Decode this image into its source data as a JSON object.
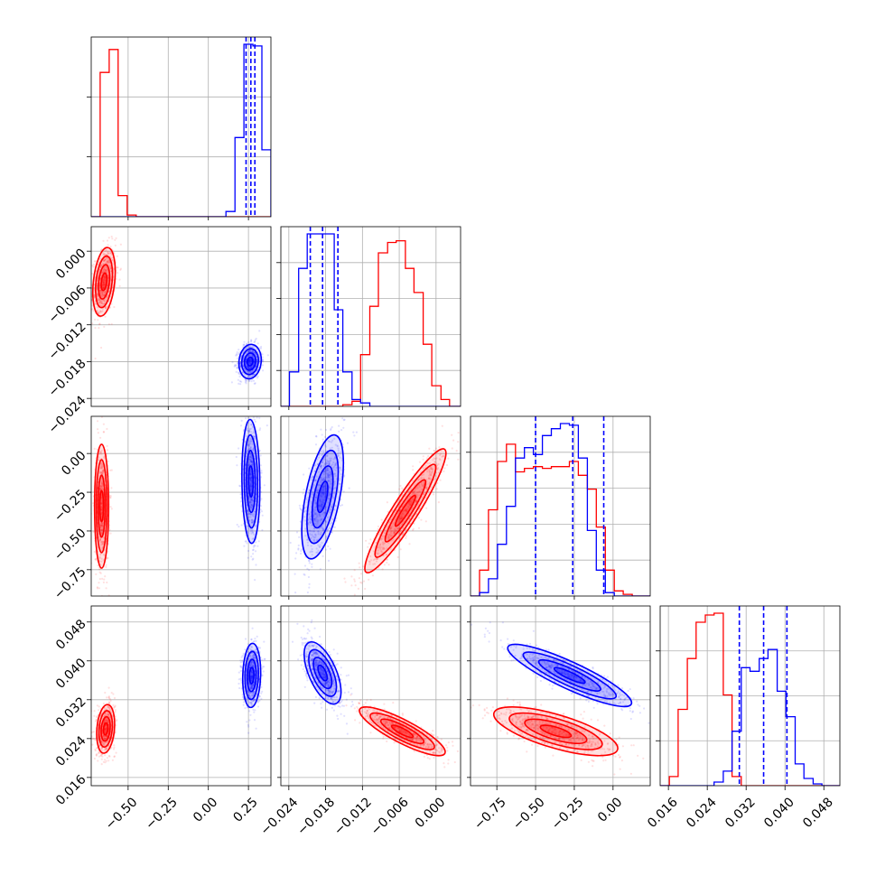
{
  "chart_data": {
    "type": "corner",
    "title": "",
    "grid": true,
    "legend": "none",
    "series": [
      {
        "color": "#ff0000"
      },
      {
        "color": "#0000ff"
      }
    ],
    "parameters": [
      {
        "index": 0,
        "xlabel": "",
        "range": [
          -0.73,
          0.39
        ],
        "ticks": [
          -0.5,
          -0.25,
          0.0,
          0.25
        ],
        "tick_labels": [
          "−0.50",
          "−0.25",
          "0.00",
          "0.25"
        ]
      },
      {
        "index": 1,
        "xlabel": "",
        "range": [
          -0.0253,
          0.004
        ],
        "ticks": [
          -0.024,
          -0.018,
          -0.012,
          -0.006,
          0.0
        ],
        "tick_labels": [
          "−0.024",
          "−0.018",
          "−0.012",
          "−0.006",
          "0.000"
        ]
      },
      {
        "index": 2,
        "xlabel": "",
        "range": [
          -0.92,
          0.24
        ],
        "ticks": [
          -0.75,
          -0.5,
          -0.25,
          0.0
        ],
        "tick_labels": [
          "−0.75",
          "−0.50",
          "−0.25",
          "0.00"
        ]
      },
      {
        "index": 3,
        "xlabel": "",
        "range": [
          0.0143,
          0.0513
        ],
        "ticks": [
          0.016,
          0.024,
          0.032,
          0.04,
          0.048
        ],
        "tick_labels": [
          "0.016",
          "0.024",
          "0.032",
          "0.040",
          "0.048"
        ]
      }
    ],
    "diagonal_tick_counts": [
      2,
      4,
      4,
      3
    ],
    "quantiles": [
      [
        0.235,
        0.265,
        0.29
      ],
      [
        -0.0205,
        -0.0185,
        -0.016
      ],
      [
        -0.5,
        -0.26,
        -0.06
      ],
      [
        0.0306,
        0.0356,
        0.0404
      ]
    ],
    "histograms": [
      {
        "bins": [
          -0.73,
          -0.674,
          -0.618,
          -0.562,
          -0.506,
          -0.45,
          -0.394,
          -0.338,
          -0.282,
          -0.226,
          -0.17,
          -0.114,
          -0.058,
          -0.002,
          0.054,
          0.11,
          0.166,
          0.222,
          0.278,
          0.334,
          0.39
        ],
        "red": [
          0.0,
          0.82,
          0.95,
          0.12,
          0.01,
          0.0,
          0.0,
          0.0,
          0.0,
          0.0,
          0.0,
          0.0,
          0.0,
          0.0,
          0.0,
          0.0,
          0.0,
          0.0,
          0.0,
          0.0
        ],
        "blue": [
          0.0,
          0.0,
          0.0,
          0.0,
          0.0,
          0.0,
          0.0,
          0.0,
          0.0,
          0.0,
          0.0,
          0.0,
          0.0,
          0.0,
          0.0,
          0.03,
          0.45,
          0.98,
          0.97,
          0.38
        ]
      },
      {
        "bins": [
          -0.0253,
          -0.0239,
          -0.0224,
          -0.021,
          -0.0195,
          -0.0181,
          -0.0166,
          -0.0152,
          -0.0137,
          -0.0123,
          -0.0108,
          -0.0094,
          -0.0079,
          -0.0065,
          -0.005,
          -0.0036,
          -0.0021,
          -0.0007,
          0.0008,
          0.0022,
          0.004
        ],
        "red": [
          0.0,
          0.0,
          0.0,
          0.0,
          0.0,
          0.0,
          0.0,
          0.01,
          0.03,
          0.3,
          0.58,
          0.89,
          0.95,
          0.96,
          0.8,
          0.66,
          0.36,
          0.12,
          0.04,
          0.0
        ],
        "blue": [
          0.0,
          0.2,
          0.8,
          1.0,
          1.0,
          1.0,
          0.56,
          0.2,
          0.04,
          0.02,
          0.0,
          0.0,
          0.0,
          0.0,
          0.0,
          0.0,
          0.0,
          0.0,
          0.0,
          0.0
        ]
      },
      {
        "bins": [
          -0.92,
          -0.862,
          -0.804,
          -0.746,
          -0.688,
          -0.63,
          -0.572,
          -0.514,
          -0.456,
          -0.398,
          -0.34,
          -0.282,
          -0.224,
          -0.166,
          -0.108,
          -0.05,
          0.008,
          0.066,
          0.124,
          0.182,
          0.24
        ],
        "red": [
          0.0,
          0.15,
          0.5,
          0.78,
          0.88,
          0.72,
          0.74,
          0.75,
          0.74,
          0.75,
          0.75,
          0.78,
          0.7,
          0.62,
          0.4,
          0.15,
          0.03,
          0.01,
          0.0,
          0.0
        ],
        "blue": [
          0.0,
          0.02,
          0.1,
          0.3,
          0.52,
          0.8,
          0.86,
          0.82,
          0.93,
          0.97,
          1.0,
          0.99,
          0.8,
          0.38,
          0.15,
          0.02,
          0.0,
          0.0,
          0.0,
          0.0
        ]
      },
      {
        "bins": [
          0.0143,
          0.0162,
          0.018,
          0.0199,
          0.0217,
          0.0236,
          0.0254,
          0.0273,
          0.0291,
          0.031,
          0.0328,
          0.0347,
          0.0365,
          0.0384,
          0.0402,
          0.0421,
          0.0439,
          0.0458,
          0.0476,
          0.0495,
          0.0513
        ],
        "red": [
          0.0,
          0.05,
          0.42,
          0.7,
          0.9,
          0.94,
          0.95,
          0.5,
          0.05,
          0.0,
          0.0,
          0.0,
          0.0,
          0.0,
          0.0,
          0.0,
          0.0,
          0.0,
          0.0,
          0.0
        ],
        "blue": [
          0.0,
          0.0,
          0.0,
          0.0,
          0.0,
          0.0,
          0.02,
          0.08,
          0.3,
          0.65,
          0.63,
          0.7,
          0.75,
          0.52,
          0.38,
          0.12,
          0.04,
          0.01,
          0.0,
          0.0
        ]
      }
    ],
    "pairs": [
      {
        "x": 0,
        "y": 1,
        "red": {
          "mean": [
            -0.65,
            -0.005
          ],
          "sd": [
            0.035,
            0.0028
          ],
          "rho": 0.3
        },
        "blue": {
          "mean": [
            0.26,
            -0.018
          ],
          "sd": [
            0.035,
            0.0014
          ],
          "rho": 0.1
        }
      },
      {
        "x": 0,
        "y": 2,
        "red": {
          "mean": [
            -0.665,
            -0.34
          ],
          "sd": [
            0.022,
            0.2
          ],
          "rho": 0.0
        },
        "blue": {
          "mean": [
            0.265,
            -0.18
          ],
          "sd": [
            0.028,
            0.2
          ],
          "rho": -0.1
        }
      },
      {
        "x": 1,
        "y": 2,
        "red": {
          "mean": [
            -0.005,
            -0.37
          ],
          "sd": [
            0.0033,
            0.2
          ],
          "rho": 0.93
        },
        "blue": {
          "mean": [
            -0.0185,
            -0.28
          ],
          "sd": [
            0.0017,
            0.2
          ],
          "rho": 0.55
        }
      },
      {
        "x": 0,
        "y": 3,
        "red": {
          "mean": [
            -0.64,
            0.026
          ],
          "sd": [
            0.028,
            0.0025
          ],
          "rho": 0.2
        },
        "blue": {
          "mean": [
            0.27,
            0.037
          ],
          "sd": [
            0.028,
            0.0033
          ],
          "rho": 0.1
        }
      },
      {
        "x": 1,
        "y": 3,
        "red": {
          "mean": [
            -0.0055,
            0.0255
          ],
          "sd": [
            0.0035,
            0.0025
          ],
          "rho": -0.85
        },
        "blue": {
          "mean": [
            -0.0185,
            0.0375
          ],
          "sd": [
            0.0015,
            0.0032
          ],
          "rho": -0.6
        }
      },
      {
        "x": 2,
        "y": 3,
        "red": {
          "mean": [
            -0.37,
            0.0255
          ],
          "sd": [
            0.2,
            0.0025
          ],
          "rho": -0.7
        },
        "blue": {
          "mean": [
            -0.28,
            0.037
          ],
          "sd": [
            0.2,
            0.0032
          ],
          "rho": -0.88
        }
      }
    ]
  }
}
